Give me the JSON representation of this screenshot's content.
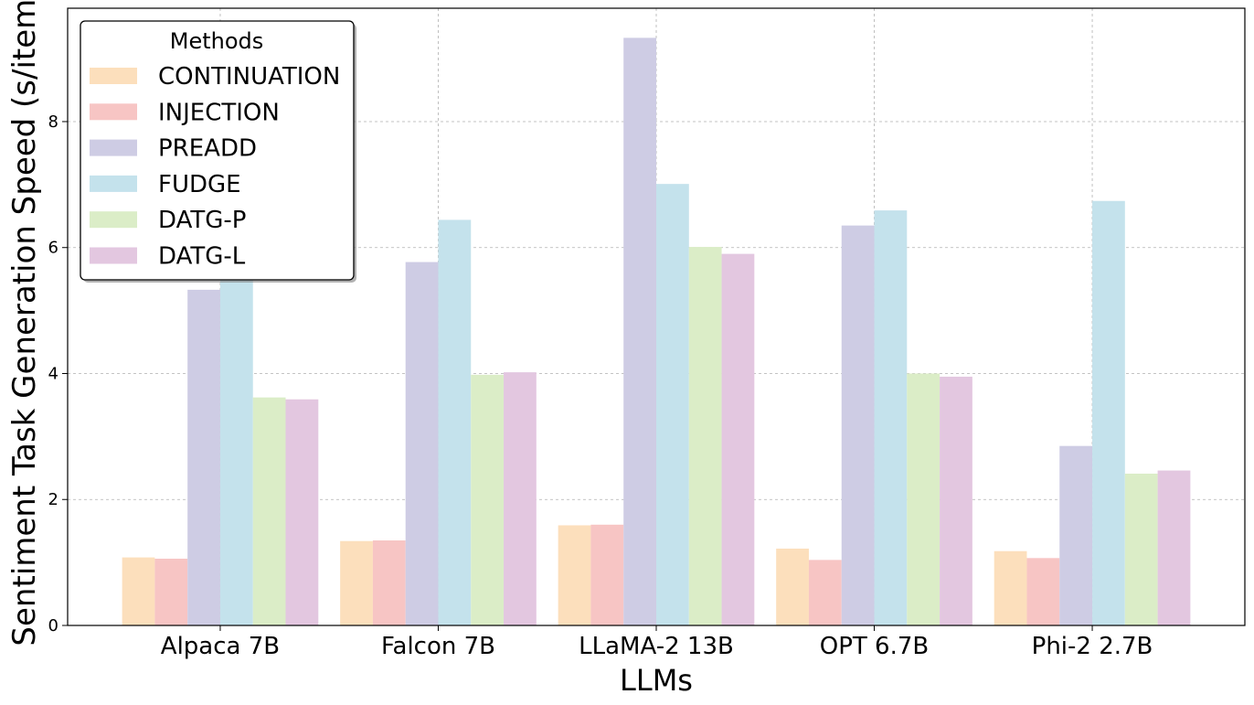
{
  "chart_data": {
    "type": "bar",
    "title": "",
    "xlabel": "LLMs",
    "ylabel": "Sentiment Task Generation Speed (s/item)",
    "ylim": [
      0,
      9.8
    ],
    "yticks": [
      0,
      2,
      4,
      6,
      8
    ],
    "grid": true,
    "legend": {
      "title": "Methods",
      "position": "top-left"
    },
    "categories": [
      "Alpaca 7B",
      "Falcon 7B",
      "LLaMA-2 13B",
      "OPT 6.7B",
      "Phi-2 2.7B"
    ],
    "series": [
      {
        "name": "CONTINUATION",
        "color": "#fcdfbc",
        "values": [
          1.08,
          1.34,
          1.59,
          1.22,
          1.18
        ]
      },
      {
        "name": "INJECTION",
        "color": "#f7c5c4",
        "values": [
          1.06,
          1.35,
          1.6,
          1.04,
          1.07
        ]
      },
      {
        "name": "PREADD",
        "color": "#cecce4",
        "values": [
          5.33,
          5.77,
          9.33,
          6.35,
          2.85
        ]
      },
      {
        "name": "FUDGE",
        "color": "#c4e2ec",
        "values": [
          5.8,
          6.44,
          7.01,
          6.59,
          6.74
        ]
      },
      {
        "name": "DATG-P",
        "color": "#dbedc7",
        "values": [
          3.62,
          3.98,
          6.01,
          4.0,
          2.41
        ]
      },
      {
        "name": "DATG-L",
        "color": "#e3c7e0",
        "values": [
          3.59,
          4.02,
          5.9,
          3.95,
          2.46
        ]
      }
    ]
  }
}
